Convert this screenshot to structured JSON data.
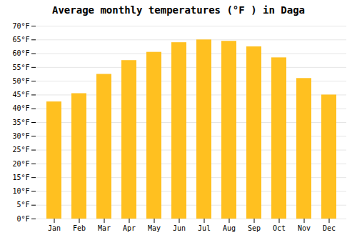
{
  "chart_data": {
    "type": "bar",
    "title": "Average monthly temperatures (°F ) in Daga",
    "categories": [
      "Jan",
      "Feb",
      "Mar",
      "Apr",
      "May",
      "Jun",
      "Jul",
      "Aug",
      "Sep",
      "Oct",
      "Nov",
      "Dec"
    ],
    "values": [
      42.5,
      45.5,
      52.5,
      57.5,
      60.5,
      64.0,
      65.0,
      64.5,
      62.5,
      58.5,
      51.0,
      45.0
    ],
    "color": "#FFC020",
    "ylim": [
      0,
      70
    ],
    "yticks": [
      {
        "value": 0,
        "label": "0°F"
      },
      {
        "value": 5,
        "label": "5°F"
      },
      {
        "value": 10,
        "label": "10°F"
      },
      {
        "value": 15,
        "label": "15°F"
      },
      {
        "value": 20,
        "label": "20°F"
      },
      {
        "value": 25,
        "label": "25°F"
      },
      {
        "value": 30,
        "label": "30°F"
      },
      {
        "value": 35,
        "label": "35°F"
      },
      {
        "value": 40,
        "label": "40°F"
      },
      {
        "value": 45,
        "label": "45°F"
      },
      {
        "value": 50,
        "label": "50°F"
      },
      {
        "value": 55,
        "label": "55°F"
      },
      {
        "value": 60,
        "label": "60°F"
      },
      {
        "value": 65,
        "label": "65°F"
      },
      {
        "value": 70,
        "label": "70°F"
      }
    ],
    "grid": true
  }
}
